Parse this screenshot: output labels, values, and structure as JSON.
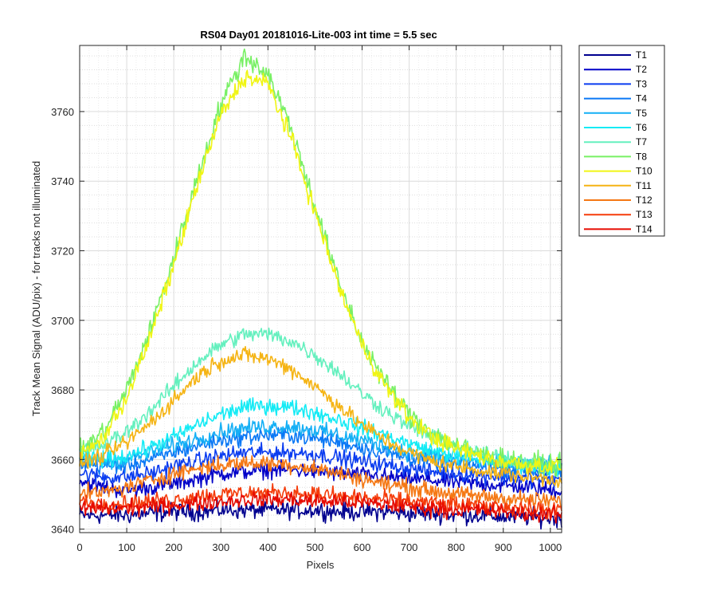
{
  "chart_data": {
    "type": "line",
    "title": "RS04 Day01 20181016-Lite-003 int time = 5.5 sec",
    "xlabel": "Pixels",
    "ylabel": "Track Mean Signal (ADU/pix) - for tracks not illuminated",
    "xlim": [
      0,
      1024
    ],
    "ylim": [
      3639,
      3779
    ],
    "x_ticks": [
      "0",
      "100",
      "200",
      "300",
      "400",
      "500",
      "600",
      "700",
      "800",
      "900",
      "1000"
    ],
    "y_ticks": [
      "3640",
      "3660",
      "3680",
      "3700",
      "3720",
      "3740",
      "3760"
    ],
    "grid": "major and minor",
    "legend_position": "outside-right",
    "x": [
      0,
      50,
      100,
      150,
      200,
      250,
      300,
      350,
      400,
      450,
      500,
      550,
      600,
      650,
      700,
      750,
      800,
      850,
      900,
      950,
      1024
    ],
    "series": [
      {
        "name": "T1",
        "color": "#00008F",
        "noise": 2.5,
        "values": [
          3644,
          3644,
          3644,
          3644.5,
          3645,
          3645,
          3645.5,
          3645.5,
          3645.5,
          3645.5,
          3645.5,
          3645,
          3645,
          3645,
          3644.5,
          3644.5,
          3644,
          3644,
          3643.5,
          3643.5,
          3643
        ]
      },
      {
        "name": "T2",
        "color": "#0000C8",
        "noise": 2.3,
        "values": [
          3654,
          3652,
          3651,
          3652,
          3653,
          3654.5,
          3656,
          3656.5,
          3657,
          3657,
          3656.5,
          3656,
          3655.5,
          3655,
          3654.5,
          3654,
          3653.5,
          3653,
          3652.5,
          3652,
          3651
        ]
      },
      {
        "name": "T3",
        "color": "#0A3CF0",
        "noise": 2.3,
        "values": [
          3656,
          3655,
          3655,
          3656,
          3658,
          3659.5,
          3661,
          3662,
          3662,
          3662,
          3661.5,
          3660.5,
          3659.5,
          3658.5,
          3657.5,
          3656.5,
          3656,
          3655.5,
          3655,
          3654.5,
          3654
        ]
      },
      {
        "name": "T4",
        "color": "#0A78F5",
        "noise": 2.3,
        "values": [
          3659,
          3658,
          3658.5,
          3660,
          3662,
          3664,
          3665.5,
          3666.5,
          3667,
          3667,
          3666,
          3665,
          3663.5,
          3662,
          3660.5,
          3659.5,
          3658.5,
          3658,
          3657.5,
          3657,
          3656.5
        ]
      },
      {
        "name": "T5",
        "color": "#14AFF5",
        "noise": 2.3,
        "values": [
          3660,
          3659.5,
          3660,
          3662,
          3664,
          3666,
          3668,
          3669,
          3669.5,
          3669.5,
          3668.5,
          3667,
          3665.5,
          3664,
          3662,
          3661,
          3660,
          3659.5,
          3659,
          3658.5,
          3658
        ]
      },
      {
        "name": "T6",
        "color": "#14EBF5",
        "noise": 2.3,
        "values": [
          3661,
          3660,
          3661,
          3663.5,
          3666.5,
          3670,
          3673,
          3675,
          3675.5,
          3675,
          3673.5,
          3671.5,
          3669,
          3667,
          3664.5,
          3662.5,
          3661,
          3660,
          3659,
          3658.5,
          3657.5
        ]
      },
      {
        "name": "T7",
        "color": "#64F0BE",
        "noise": 2.3,
        "values": [
          3663,
          3664,
          3668,
          3674,
          3681,
          3688,
          3693,
          3696,
          3696,
          3694,
          3690,
          3685,
          3679,
          3674,
          3669.5,
          3666.5,
          3664,
          3662,
          3660.5,
          3659.5,
          3658.5
        ]
      },
      {
        "name": "T8",
        "color": "#78F064",
        "noise": 3.0,
        "values": [
          3662,
          3668,
          3680,
          3697,
          3718,
          3741,
          3762,
          3776,
          3771,
          3755,
          3733,
          3711,
          3694,
          3682,
          3673,
          3667.5,
          3664,
          3661.5,
          3660,
          3659,
          3658
        ]
      },
      {
        "name": "T10",
        "color": "#F0F514",
        "noise": 2.6,
        "values": [
          3661,
          3666,
          3678,
          3695,
          3716,
          3739,
          3759,
          3770,
          3768,
          3752,
          3731,
          3710,
          3693,
          3681,
          3672,
          3666.5,
          3663,
          3661,
          3659.5,
          3658.5,
          3658
        ]
      },
      {
        "name": "T11",
        "color": "#F5B414",
        "noise": 2.3,
        "values": [
          3659,
          3661,
          3665,
          3670.5,
          3677,
          3684,
          3688.5,
          3690,
          3689,
          3686,
          3681,
          3675.5,
          3670,
          3665.5,
          3662,
          3659.5,
          3658,
          3657,
          3656,
          3655,
          3654
        ]
      },
      {
        "name": "T12",
        "color": "#F57814",
        "noise": 2.3,
        "values": [
          3650,
          3650.5,
          3652,
          3654,
          3656,
          3657.5,
          3658.5,
          3659,
          3659,
          3658.5,
          3657.5,
          3656,
          3654.5,
          3653,
          3652,
          3651,
          3650,
          3649.5,
          3649,
          3648.5,
          3648
        ]
      },
      {
        "name": "T13",
        "color": "#F53C0A",
        "noise": 2.3,
        "values": [
          3648,
          3647.5,
          3647.5,
          3648,
          3648.5,
          3649.5,
          3650,
          3650.5,
          3650.5,
          3650.5,
          3650,
          3649.5,
          3649,
          3648.5,
          3648,
          3647.5,
          3647,
          3646.5,
          3646.5,
          3646,
          3645.5
        ]
      },
      {
        "name": "T14",
        "color": "#E60A00",
        "noise": 2.3,
        "values": [
          3646,
          3646,
          3646,
          3646.5,
          3647,
          3647.5,
          3648,
          3648.5,
          3648.5,
          3648.5,
          3648,
          3648,
          3647.5,
          3647,
          3646.5,
          3646,
          3645.5,
          3645.5,
          3645,
          3644.5,
          3644
        ]
      }
    ]
  }
}
